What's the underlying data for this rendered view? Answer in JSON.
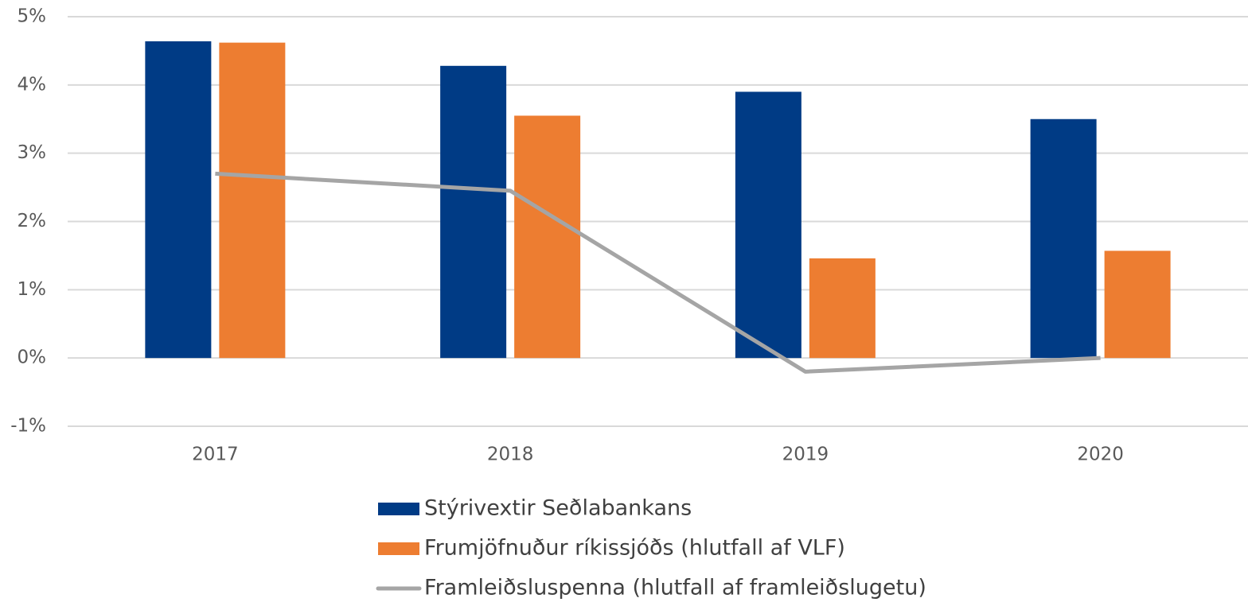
{
  "chart_data": {
    "type": "bar",
    "categories": [
      "2017",
      "2018",
      "2019",
      "2020"
    ],
    "series": [
      {
        "name": "Stýrivextir Seðlabankans",
        "color": "#003b85",
        "values": [
          4.64,
          4.28,
          3.9,
          3.5
        ]
      },
      {
        "name": "Frumjöfnuður ríkissjóðs (hlutfall af VLF)",
        "color": "#ed7d31",
        "values": [
          4.62,
          3.55,
          1.46,
          1.57
        ]
      },
      {
        "name": "Framleiðsluspenna (hlutfall af framleiðslugetu)",
        "color": "#a5a5a5",
        "type": "line",
        "values": [
          2.7,
          2.45,
          -0.2,
          0
        ]
      }
    ],
    "ylim": [
      -1,
      5
    ],
    "yticks": [
      {
        "value": -1,
        "label": "-1%"
      },
      {
        "value": 0,
        "label": "0%"
      },
      {
        "value": 1,
        "label": "1%"
      },
      {
        "value": 2,
        "label": "2%"
      },
      {
        "value": 3,
        "label": "3%"
      },
      {
        "value": 4,
        "label": "4%"
      },
      {
        "value": 5,
        "label": "5%"
      }
    ],
    "grid": true,
    "legend": "bottom"
  }
}
